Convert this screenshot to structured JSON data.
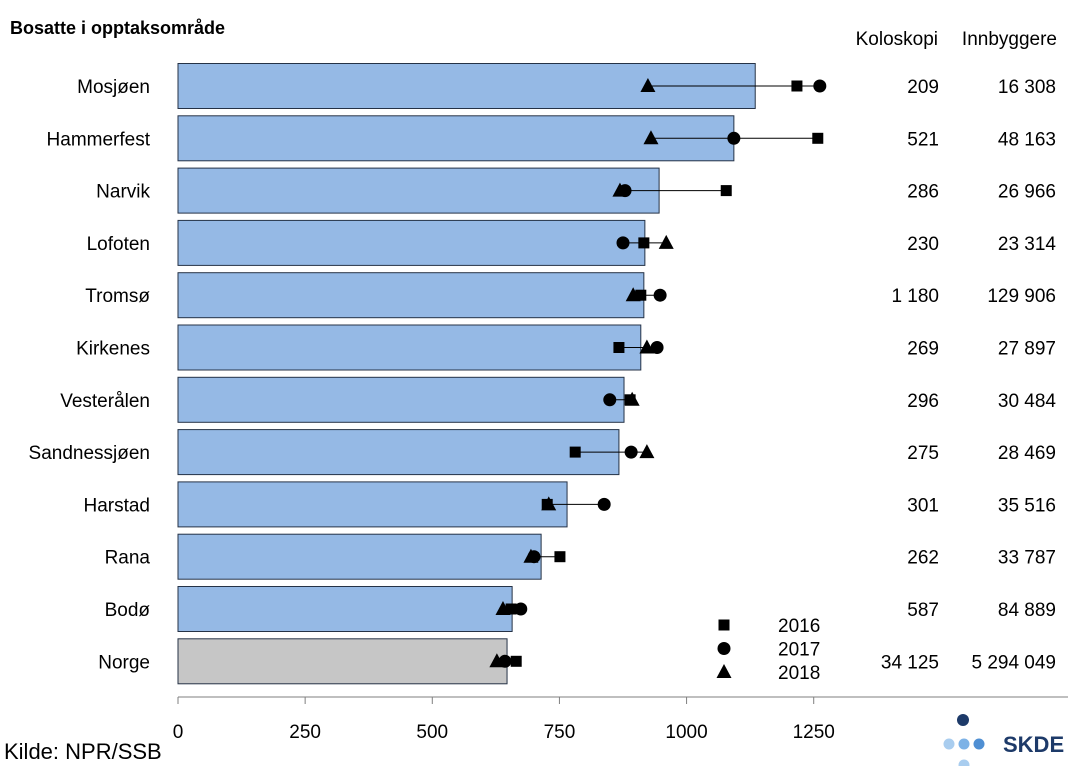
{
  "chart_data": {
    "type": "bar",
    "title": "Bosatte i opptaksområde",
    "xlabel": "",
    "ylabel": "",
    "categories": [
      "Mosjøen",
      "Hammerfest",
      "Narvik",
      "Lofoten",
      "Tromsø",
      "Kirkenes",
      "Vesterålen",
      "Sandnessjøen",
      "Harstad",
      "Rana",
      "Bodø",
      "Norge"
    ],
    "values": [
      1135,
      1093,
      946,
      918,
      916,
      910,
      877,
      867,
      765,
      714,
      657,
      647
    ],
    "series": [
      {
        "name": "2016",
        "marker": "square",
        "color": "#000000",
        "values": [
          1217,
          1258,
          1078,
          916,
          910,
          867,
          889,
          781,
          726,
          751,
          655,
          665
        ]
      },
      {
        "name": "2017",
        "marker": "circle",
        "color": "#000000",
        "values": [
          1262,
          1093,
          879,
          875,
          948,
          942,
          849,
          891,
          838,
          700,
          674,
          643
        ]
      },
      {
        "name": "2018",
        "marker": "triangle",
        "color": "#000000",
        "values": [
          924,
          930,
          869,
          960,
          895,
          922,
          893,
          922,
          729,
          694,
          639,
          627
        ]
      }
    ],
    "xlim": [
      0,
      1750
    ],
    "xticks": [
      0,
      250,
      500,
      750,
      1000,
      1250
    ],
    "grid": false,
    "legend_placement": "bottom-right",
    "reference_category": "Norge",
    "bar_color": "#95b9e5",
    "reference_bar_color": "#c6c6c6",
    "bar_outline_color": "#253246",
    "table": {
      "headers": [
        "Koloskopi",
        "Innbyggere"
      ],
      "koloskopi": [
        "209",
        "521",
        "286",
        "230",
        "1 180",
        "269",
        "296",
        "275",
        "301",
        "262",
        "587",
        "34 125"
      ],
      "innbyggere": [
        "16 308",
        "48 163",
        "26 966",
        "23 314",
        "129 906",
        "27 897",
        "30 484",
        "28 469",
        "35 516",
        "33 787",
        "84 889",
        "5 294 049"
      ]
    }
  },
  "source": "Kilde: NPR/SSB",
  "logo": {
    "text": "SKDE"
  }
}
